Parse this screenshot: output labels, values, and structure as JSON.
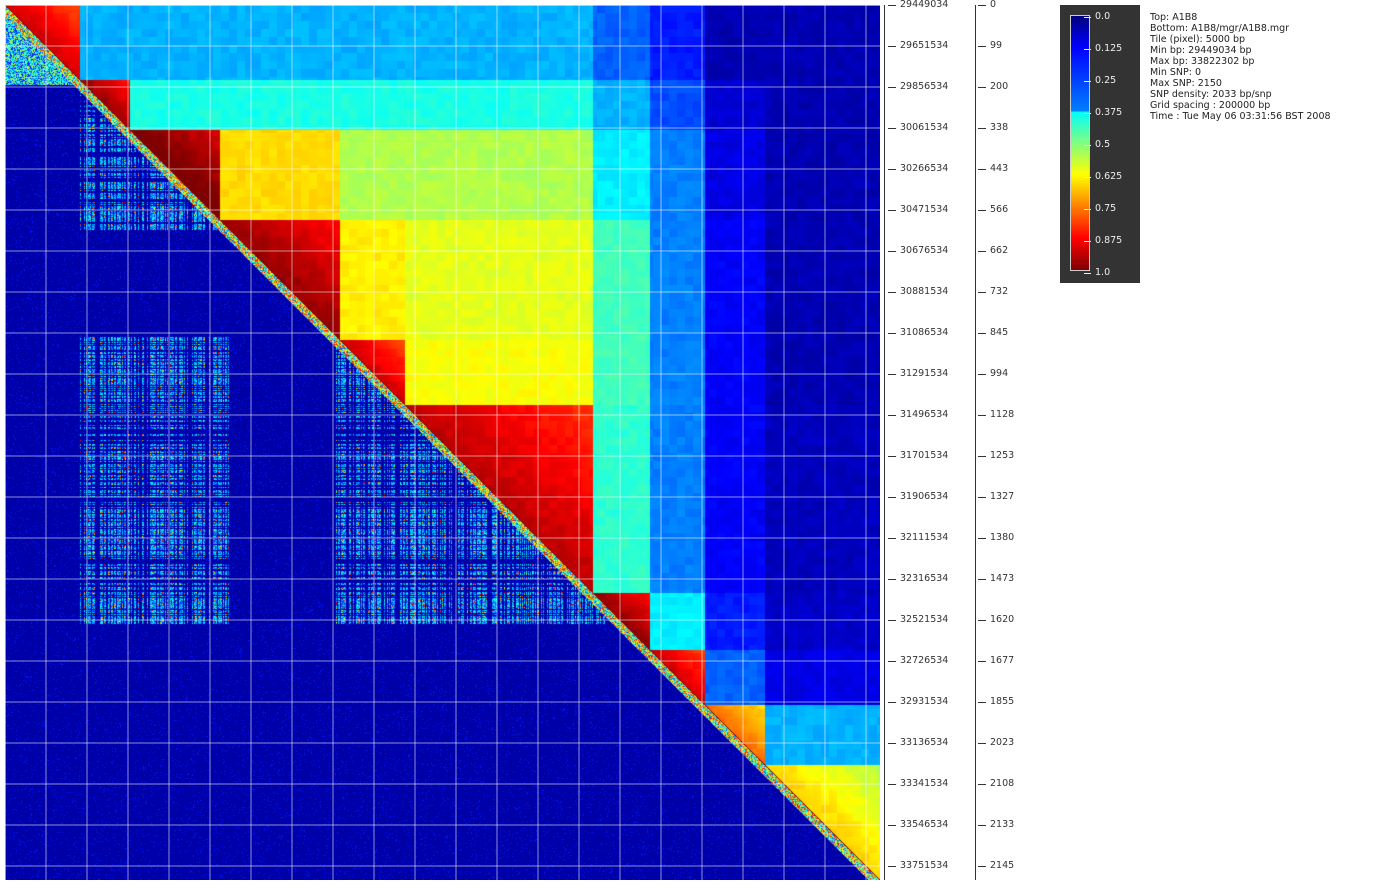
{
  "chart_data": {
    "type": "heatmap",
    "colormap": "jet",
    "value_range": [
      0.0,
      1.0
    ],
    "grid": true,
    "bp_axis": {
      "min": 29449034,
      "max": 33822302,
      "ticks": [
        29449034,
        29651534,
        29856534,
        30061534,
        30266534,
        30471534,
        30676534,
        30881534,
        31086534,
        31291534,
        31496534,
        31701534,
        31906534,
        32111534,
        32316534,
        32521534,
        32726534,
        32931534,
        33136534,
        33341534,
        33546534,
        33751534
      ]
    },
    "snp_axis": {
      "ticks": [
        "0",
        "99",
        "200",
        "338",
        "443",
        "566",
        "662",
        "732",
        "845",
        "994",
        "1128",
        "1253",
        "1327",
        "1380",
        "1473",
        "1620",
        "1677",
        "1855",
        "2023",
        "2108",
        "2133",
        "2145"
      ]
    },
    "block_boundaries_bp": [
      29449034,
      29824034,
      30074034,
      30524034,
      31124034,
      31449034,
      32389034,
      32674034,
      32949034,
      33249034,
      33822302
    ],
    "upper_block_values": [
      [
        0.8,
        0.3,
        0.3,
        0.3,
        0.3,
        0.3,
        0.22,
        0.15,
        0.05,
        0.05
      ],
      [
        0,
        0.85,
        0.4,
        0.4,
        0.4,
        0.4,
        0.3,
        0.2,
        0.08,
        0.05
      ],
      [
        0,
        0,
        0.9,
        0.66,
        0.55,
        0.55,
        0.36,
        0.25,
        0.1,
        0.05
      ],
      [
        0,
        0,
        0,
        0.86,
        0.64,
        0.6,
        0.44,
        0.25,
        0.12,
        0.05
      ],
      [
        0,
        0,
        0,
        0,
        0.8,
        0.62,
        0.44,
        0.25,
        0.12,
        0.05
      ],
      [
        0,
        0,
        0,
        0,
        0,
        0.82,
        0.42,
        0.25,
        0.12,
        0.06
      ],
      [
        0,
        0,
        0,
        0,
        0,
        0,
        0.86,
        0.36,
        0.15,
        0.07
      ],
      [
        0,
        0,
        0,
        0,
        0,
        0,
        0,
        0.8,
        0.22,
        0.1
      ],
      [
        0,
        0,
        0,
        0,
        0,
        0,
        0,
        0,
        0.65,
        0.3
      ],
      [
        0,
        0,
        0,
        0,
        0,
        0,
        0,
        0,
        0,
        0.55
      ]
    ],
    "colorbar": {
      "labels": [
        "0.0",
        "0.125",
        "0.25",
        "0.375",
        "0.5",
        "0.625",
        "0.75",
        "0.875",
        "1.0"
      ]
    }
  },
  "info": {
    "lines": [
      "Top:  A1B8",
      "Bottom:  A1B8/mgr/A1B8.mgr",
      "Tile (pixel):  5000 bp",
      "Min bp:  29449034 bp",
      "Max bp:  33822302 bp",
      "Min SNP:  0",
      "Max SNP:  2150",
      "SNP density:  2033 bp/snp",
      "Grid spacing :  200000 bp",
      "Time :  Tue May 06 03:31:56 BST 2008"
    ]
  }
}
